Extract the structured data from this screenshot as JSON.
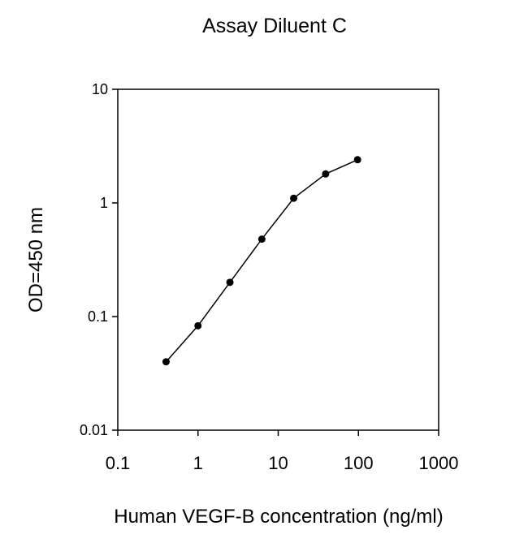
{
  "chart_data": {
    "type": "line",
    "title": "Assay Diluent C",
    "xlabel": "Human VEGF-B concentration (ng/ml)",
    "ylabel": "OD=450 nm",
    "x_scale": "log",
    "y_scale": "log",
    "xlim": [
      0.1,
      1000
    ],
    "ylim": [
      0.01,
      10
    ],
    "x_ticks": [
      0.1,
      1,
      10,
      100,
      1000
    ],
    "x_tick_labels": [
      "0.1",
      "1",
      "10",
      "100",
      "1000"
    ],
    "y_ticks": [
      0.01,
      0.1,
      1,
      10
    ],
    "y_tick_labels": [
      "0.01",
      "0.1",
      "1",
      "10"
    ],
    "grid": false,
    "series": [
      {
        "x": [
          0.4,
          1,
          2.5,
          6.25,
          15.6,
          39,
          97.5
        ],
        "y": [
          0.04,
          0.083,
          0.2,
          0.48,
          1.1,
          1.8,
          2.4
        ],
        "color": "#000000",
        "marker": "circle"
      }
    ]
  }
}
